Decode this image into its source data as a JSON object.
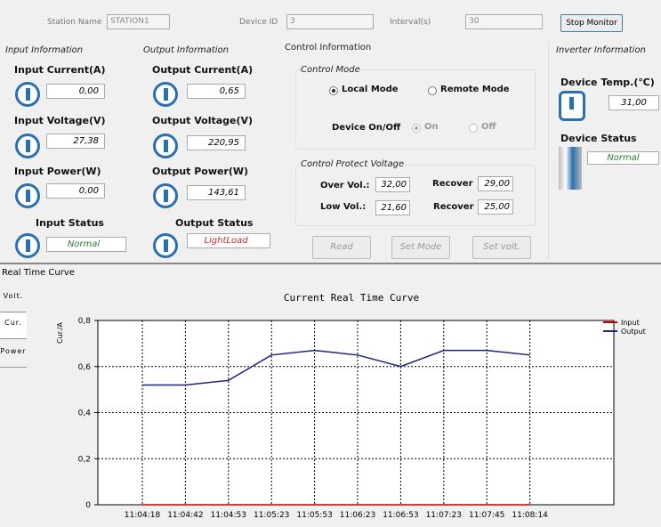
{
  "toolbar": {
    "station_label": "Station Name",
    "station_value": "STATION1",
    "device_id_label": "Device ID",
    "device_id_value": "3",
    "interval_label": "Interval(s)",
    "interval_value": "30",
    "stop_button": "Stop Monitor"
  },
  "input": {
    "title": "Input Information",
    "current_label": "Input Current(A)",
    "current": "0,00",
    "voltage_label": "Input Voltage(V)",
    "voltage": "27,38",
    "power_label": "Input Power(W)",
    "power": "0,00",
    "status_label": "Input Status",
    "status": "Normal"
  },
  "output": {
    "title": "Output Information",
    "current_label": "Output Current(A)",
    "current": "0,65",
    "voltage_label": "Output Voltage(V)",
    "voltage": "220,95",
    "power_label": "Output Power(W)",
    "power": "143,61",
    "status_label": "Output Status",
    "status": "LightLoad"
  },
  "control": {
    "title": "Control Information",
    "mode_group": "Control Mode",
    "local_mode": "Local Mode",
    "remote_mode": "Remote Mode",
    "on_off_label": "Device On/Off",
    "on": "On",
    "off": "Off",
    "protect_group": "Control Protect Voltage",
    "over_label": "Over Vol.:",
    "over": "32,00",
    "over_recover_label": "Recover",
    "over_recover": "29,00",
    "low_label": "Low Vol.:",
    "low": "21,60",
    "low_recover_label": "Recover",
    "low_recover": "25,00",
    "read_button": "Read",
    "set_mode_button": "Set Mode",
    "set_volt_button": "Set volt."
  },
  "inverter": {
    "title": "Inverter Information",
    "temp_label": "Device Temp.(℃)",
    "temp": "31,00",
    "status_label": "Device Status",
    "status": "Normal"
  },
  "curve_section": "Real Time Curve",
  "tabs": [
    "Volt.",
    "Cur.",
    "Power"
  ],
  "chart_data": {
    "type": "line",
    "title": "Current Real Time Curve",
    "ylabel": "Cur./A",
    "categories": [
      "11:04:18",
      "11:04:42",
      "11:04:53",
      "11:05:23",
      "11:05:53",
      "11:06:23",
      "11:06:53",
      "11:07:23",
      "11:07:45",
      "11:08:14"
    ],
    "series": [
      {
        "name": "Input",
        "color": "#c00000",
        "values": [
          0,
          0,
          0,
          0,
          0,
          0,
          0,
          0,
          0,
          0
        ]
      },
      {
        "name": "Output",
        "color": "#1a237e",
        "values": [
          0.52,
          0.52,
          0.54,
          0.65,
          0.67,
          0.65,
          0.6,
          0.67,
          0.67,
          0.65
        ]
      }
    ],
    "ylim": [
      0,
      0.8
    ],
    "yticks": [
      0,
      {
        "value": 0.2,
        "label": "0,2"
      },
      {
        "value": 0.4,
        "label": "0,4"
      },
      {
        "value": 0.6,
        "label": "0,6"
      },
      {
        "value": 0.8,
        "label": "0,8"
      }
    ],
    "grid": true,
    "legend": "top-right"
  }
}
